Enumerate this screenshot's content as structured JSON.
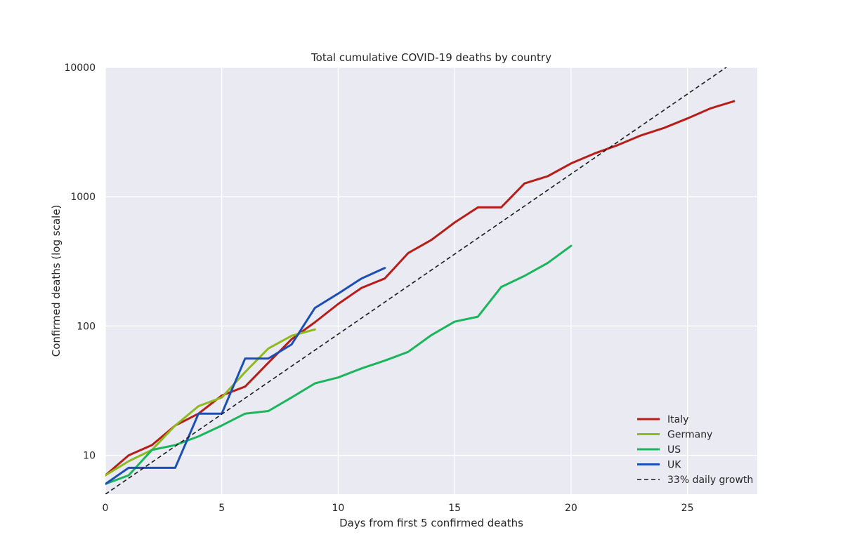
{
  "chart_data": {
    "type": "line",
    "title": "Total cumulative COVID-19 deaths by country",
    "xlabel": "Days from first 5 confirmed deaths",
    "ylabel": "Confirmed deaths (log scale)",
    "xlim": [
      0,
      28
    ],
    "ylim": [
      5,
      10000
    ],
    "yscale": "log",
    "x_ticks": [
      0,
      5,
      10,
      15,
      20,
      25
    ],
    "x_tick_labels": [
      "0",
      "5",
      "10",
      "15",
      "20",
      "25"
    ],
    "y_ticks": [
      10,
      100,
      1000,
      10000
    ],
    "y_tick_labels": [
      "10",
      "100",
      "1000",
      "10000"
    ],
    "grid": true,
    "legend_position": "bottom-right",
    "series": [
      {
        "name": "Italy",
        "color": "#b81d18",
        "style": "solid",
        "x": [
          0,
          1,
          2,
          3,
          4,
          5,
          6,
          7,
          8,
          9,
          10,
          11,
          12,
          13,
          14,
          15,
          16,
          17,
          18,
          19,
          20,
          21,
          22,
          23,
          24,
          25,
          26,
          27
        ],
        "y": [
          7,
          10,
          12,
          17,
          21,
          29,
          34,
          52,
          79,
          107,
          148,
          197,
          233,
          366,
          463,
          631,
          827,
          827,
          1266,
          1441,
          1809,
          2158,
          2503,
          2978,
          3405,
          4032,
          4825,
          5476
        ]
      },
      {
        "name": "Germany",
        "color": "#8dba1d",
        "style": "solid",
        "x": [
          0,
          1,
          2,
          3,
          4,
          5,
          6,
          7,
          8,
          9
        ],
        "y": [
          7,
          9,
          11,
          17,
          24,
          28,
          44,
          67,
          84,
          94
        ]
      },
      {
        "name": "US",
        "color": "#1bb55c",
        "style": "solid",
        "x": [
          0,
          1,
          2,
          3,
          4,
          5,
          6,
          7,
          8,
          9,
          10,
          11,
          12,
          13,
          14,
          15,
          16,
          17,
          18,
          19,
          20
        ],
        "y": [
          6,
          7,
          11,
          12,
          14,
          17,
          21,
          22,
          28,
          36,
          40,
          47,
          54,
          63,
          85,
          108,
          118,
          200,
          244,
          307,
          417
        ]
      },
      {
        "name": "UK",
        "color": "#1c4fb5",
        "style": "solid",
        "x": [
          0,
          1,
          2,
          3,
          4,
          5,
          6,
          7,
          8,
          9,
          10,
          11,
          12
        ],
        "y": [
          6,
          8,
          8,
          8,
          21,
          21,
          56,
          56,
          72,
          138,
          178,
          233,
          281
        ]
      },
      {
        "name": "33% daily growth",
        "color": "#1a1a1a",
        "style": "dashed",
        "x": [
          0,
          27
        ],
        "y": [
          5,
          11010
        ]
      }
    ]
  }
}
